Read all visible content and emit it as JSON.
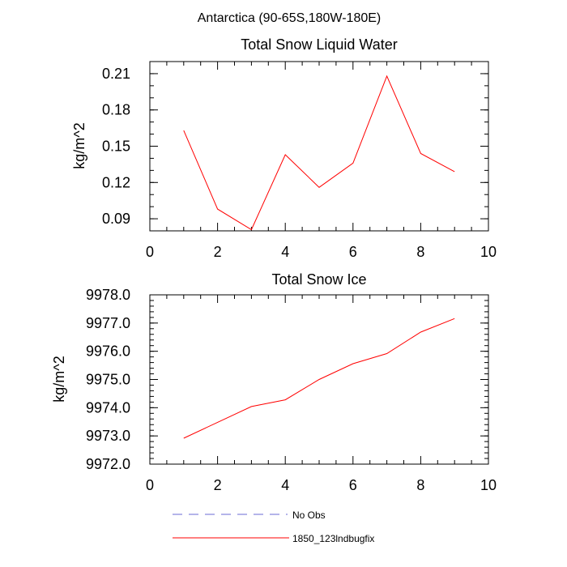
{
  "figure": {
    "title": "Antarctica (90-65S,180W-180E)"
  },
  "legend": {
    "items": [
      {
        "label": "No Obs",
        "color": "#6b6bd6",
        "dashed": true
      },
      {
        "label": "1850_123lndbugfix",
        "color": "#ff0000",
        "dashed": false
      }
    ]
  },
  "chart_data": [
    {
      "type": "line",
      "title": "Total Snow Liquid Water",
      "xlabel": "",
      "ylabel": "kg/m^2",
      "xlim": [
        0,
        10
      ],
      "ylim": [
        0.08,
        0.22
      ],
      "xticks": [
        0,
        2,
        4,
        6,
        8,
        10
      ],
      "xtick_labels": [
        "0",
        "2",
        "4",
        "6",
        "8",
        "10"
      ],
      "yticks": [
        0.09,
        0.12,
        0.15,
        0.18,
        0.21
      ],
      "ytick_labels": [
        "0.09",
        "0.12",
        "0.15",
        "0.18",
        "0.21"
      ],
      "grid": false,
      "x": [
        1,
        2,
        3,
        4,
        5,
        6,
        7,
        8,
        9
      ],
      "series": [
        {
          "name": "1850_123lndbugfix",
          "color": "#ff0000",
          "values": [
            0.163,
            0.098,
            0.081,
            0.143,
            0.116,
            0.136,
            0.208,
            0.144,
            0.129
          ]
        }
      ]
    },
    {
      "type": "line",
      "title": "Total Snow Ice",
      "xlabel": "",
      "ylabel": "kg/m^2",
      "xlim": [
        0,
        10
      ],
      "ylim": [
        9972.0,
        9978.0
      ],
      "xticks": [
        0,
        2,
        4,
        6,
        8,
        10
      ],
      "xtick_labels": [
        "0",
        "2",
        "4",
        "6",
        "8",
        "10"
      ],
      "yticks": [
        9972.0,
        9973.0,
        9974.0,
        9975.0,
        9976.0,
        9977.0,
        9978.0
      ],
      "ytick_labels": [
        "9972.0",
        "9973.0",
        "9974.0",
        "9975.0",
        "9976.0",
        "9977.0",
        "9978.0"
      ],
      "grid": false,
      "x": [
        1,
        2,
        3,
        4,
        5,
        6,
        7,
        8,
        9
      ],
      "series": [
        {
          "name": "1850_123lndbugfix",
          "color": "#ff0000",
          "values": [
            9972.92,
            9973.48,
            9974.04,
            9974.28,
            9975.0,
            9975.56,
            9975.92,
            9976.68,
            9977.16
          ]
        }
      ]
    }
  ]
}
